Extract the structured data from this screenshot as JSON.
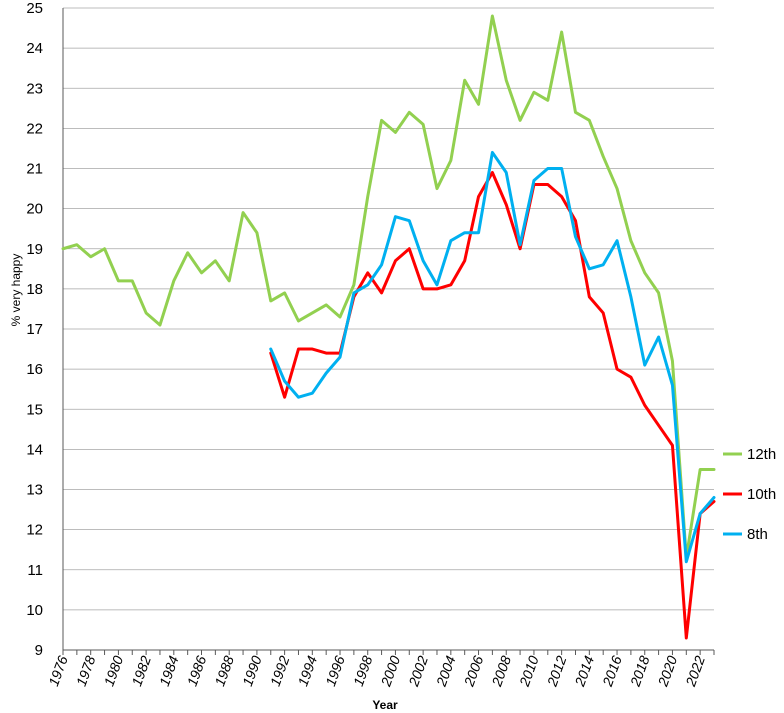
{
  "chart_data": {
    "type": "line",
    "title": "",
    "xlabel": "Year",
    "ylabel": "% very happy",
    "xlim": [
      1976,
      2023
    ],
    "ylim": [
      9,
      25
    ],
    "yticks": [
      9,
      10,
      11,
      12,
      13,
      14,
      15,
      16,
      17,
      18,
      19,
      20,
      21,
      22,
      23,
      24,
      25
    ],
    "xticks": [
      1976,
      1978,
      1980,
      1982,
      1984,
      1986,
      1988,
      1990,
      1992,
      1994,
      1996,
      1998,
      2000,
      2002,
      2004,
      2006,
      2008,
      2010,
      2012,
      2014,
      2016,
      2018,
      2020,
      2022
    ],
    "grid": true,
    "legend_position": "right",
    "series": [
      {
        "name": "12th",
        "color": "#92d050",
        "x": [
          1976,
          1977,
          1978,
          1979,
          1980,
          1981,
          1982,
          1983,
          1984,
          1985,
          1986,
          1987,
          1988,
          1989,
          1990,
          1991,
          1992,
          1993,
          1994,
          1995,
          1996,
          1997,
          1998,
          1999,
          2000,
          2001,
          2002,
          2003,
          2004,
          2005,
          2006,
          2007,
          2008,
          2009,
          2010,
          2011,
          2012,
          2013,
          2014,
          2015,
          2016,
          2017,
          2018,
          2019,
          2020,
          2021,
          2022,
          2023
        ],
        "values": [
          19.0,
          19.1,
          18.8,
          19.0,
          18.2,
          18.2,
          17.4,
          17.1,
          18.2,
          18.9,
          18.4,
          18.7,
          18.2,
          19.9,
          19.4,
          17.7,
          17.9,
          17.2,
          17.4,
          17.6,
          17.3,
          18.1,
          20.3,
          22.2,
          21.9,
          22.4,
          22.1,
          20.5,
          21.2,
          23.2,
          22.6,
          24.8,
          23.2,
          22.2,
          22.9,
          22.7,
          24.4,
          22.4,
          22.2,
          21.3,
          20.5,
          19.2,
          18.4,
          17.9,
          16.2,
          11.3,
          13.5,
          13.5
        ]
      },
      {
        "name": "10th",
        "color": "#ff0000",
        "x": [
          1991,
          1992,
          1993,
          1994,
          1995,
          1996,
          1997,
          1998,
          1999,
          2000,
          2001,
          2002,
          2003,
          2004,
          2005,
          2006,
          2007,
          2008,
          2009,
          2010,
          2011,
          2012,
          2013,
          2014,
          2015,
          2016,
          2017,
          2018,
          2019,
          2020,
          2021,
          2022,
          2023
        ],
        "values": [
          16.4,
          15.3,
          16.5,
          16.5,
          16.4,
          16.4,
          17.8,
          18.4,
          17.9,
          18.7,
          19.0,
          18.0,
          18.0,
          18.1,
          18.7,
          20.3,
          20.9,
          20.1,
          19.0,
          20.6,
          20.6,
          20.3,
          19.7,
          17.8,
          17.4,
          16.0,
          15.8,
          15.1,
          14.6,
          14.1,
          9.3,
          12.4,
          12.7
        ]
      },
      {
        "name": "8th",
        "color": "#00b0f0",
        "x": [
          1991,
          1992,
          1993,
          1994,
          1995,
          1996,
          1997,
          1998,
          1999,
          2000,
          2001,
          2002,
          2003,
          2004,
          2005,
          2006,
          2007,
          2008,
          2009,
          2010,
          2011,
          2012,
          2013,
          2014,
          2015,
          2016,
          2017,
          2018,
          2019,
          2020,
          2021,
          2022,
          2023
        ],
        "values": [
          16.5,
          15.7,
          15.3,
          15.4,
          15.9,
          16.3,
          17.9,
          18.1,
          18.6,
          19.8,
          19.7,
          18.7,
          18.1,
          19.2,
          19.4,
          19.4,
          21.4,
          20.9,
          19.1,
          20.7,
          21.0,
          21.0,
          19.3,
          18.5,
          18.6,
          19.2,
          17.8,
          16.1,
          16.8,
          15.6,
          11.2,
          12.4,
          12.8
        ]
      }
    ]
  }
}
